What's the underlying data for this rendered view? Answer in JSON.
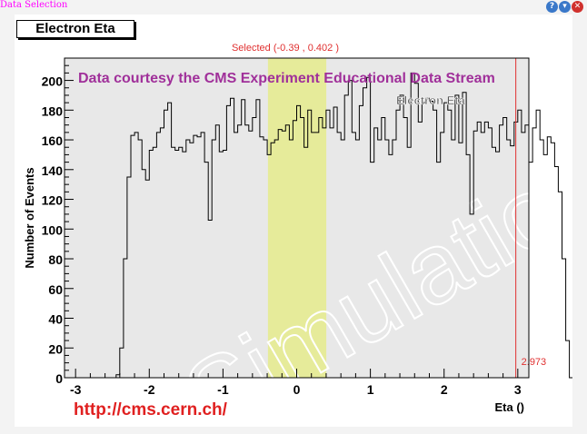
{
  "window": {
    "title": "Data Selection",
    "buttons": [
      {
        "name": "help-icon",
        "glyph": "?",
        "color": "#3a78c9"
      },
      {
        "name": "download-icon",
        "glyph": "▼",
        "color": "#3a78c9"
      },
      {
        "name": "close-icon",
        "glyph": "✕",
        "color": "#d0312d"
      }
    ]
  },
  "plot_title": "Electron Eta",
  "selection_label": "Selected (-0.39 , 0.402 )",
  "banner": "Data courtesy the CMS Experiment Educational Data Stream",
  "url": "http://cms.cern.ch/",
  "watermark": "Simulation",
  "marker_label": "2.973",
  "colors": {
    "banner": "#a0309a",
    "url": "#e02020",
    "selection_fill": "#e6eb9a",
    "plot_bg": "#e8e8e8",
    "marker": "#e03030"
  },
  "chart_data": {
    "type": "bar",
    "title": "Electron Eta",
    "xlabel": "Eta ()",
    "ylabel": "Number of Events",
    "xlim": [
      -3.15,
      3.15
    ],
    "ylim": [
      0,
      215
    ],
    "x_ticks": [
      -3,
      -2,
      -1,
      0,
      1,
      2,
      3
    ],
    "y_ticks": [
      0,
      20,
      40,
      60,
      80,
      100,
      120,
      140,
      160,
      180,
      200
    ],
    "legend": "Electron Eta",
    "selection": [
      -0.39,
      0.402
    ],
    "marker_x": 2.973,
    "bin_edges_start": -3.0,
    "bin_width": 0.05,
    "values": [
      0,
      0,
      0,
      0,
      0,
      0,
      0,
      0,
      0,
      0,
      0,
      2,
      20,
      80,
      135,
      163,
      165,
      160,
      140,
      133,
      153,
      155,
      165,
      168,
      180,
      185,
      155,
      153,
      155,
      152,
      160,
      158,
      163,
      162,
      165,
      145,
      106,
      160,
      170,
      152,
      153,
      183,
      188,
      165,
      170,
      187,
      170,
      166,
      175,
      187,
      162,
      160,
      150,
      158,
      160,
      167,
      166,
      170,
      160,
      173,
      183,
      175,
      155,
      180,
      165,
      165,
      175,
      168,
      180,
      168,
      182,
      165,
      160,
      190,
      200,
      165,
      160,
      183,
      195,
      202,
      145,
      168,
      160,
      175,
      160,
      150,
      160,
      180,
      190,
      175,
      155,
      205,
      198,
      172,
      185,
      188,
      186,
      180,
      145,
      165,
      185,
      180,
      160,
      190,
      158,
      192,
      150,
      110,
      166,
      172,
      165,
      172,
      168,
      155,
      152,
      170,
      175,
      160,
      156,
      172,
      180,
      165,
      170,
      145,
      168,
      180,
      160,
      150,
      162,
      158,
      142,
      125,
      80,
      25,
      0,
      0,
      0,
      0,
      0,
      0,
      0,
      0,
      0,
      0,
      0,
      0,
      0,
      0,
      0,
      0,
      0,
      0,
      0
    ]
  }
}
